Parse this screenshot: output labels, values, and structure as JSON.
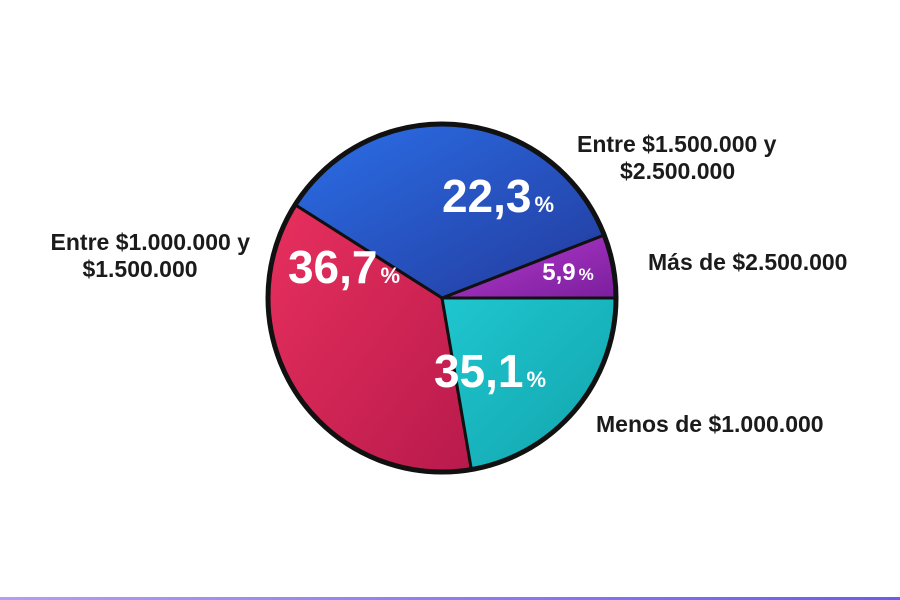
{
  "chart_data": {
    "type": "pie",
    "title": "",
    "slices": [
      {
        "label_lines": [
          "Más de $2.500.000"
        ],
        "value": 5.9,
        "display": "5,9",
        "color": "#b73ad0",
        "color_dark": "#7a1f9c"
      },
      {
        "label_lines": [
          "Menos de $1.000.000"
        ],
        "value": 35.1,
        "display": "35,1",
        "color": "#2b6fe8",
        "color_dark": "#233a9c"
      },
      {
        "label_lines": [
          "Entre $1.000.000 y",
          "$1.500.000"
        ],
        "value": 36.7,
        "display": "36,7",
        "color": "#e8305e",
        "color_dark": "#b81a4c"
      },
      {
        "label_lines": [
          "Entre $1.500.000 y",
          "$2.500.000"
        ],
        "value": 22.3,
        "display": "22,3",
        "color": "#1fc6cf",
        "color_dark": "#12a4ad"
      }
    ],
    "unit": "%",
    "start_direction": "east",
    "orientation": "counter-clockwise",
    "legend": "none",
    "outline_color": "#111111"
  }
}
